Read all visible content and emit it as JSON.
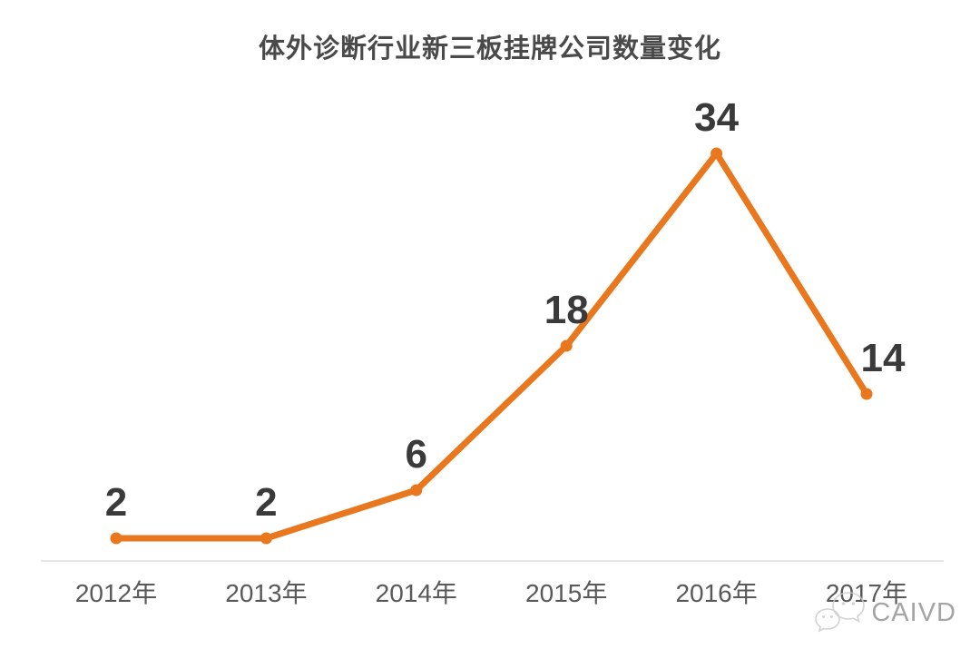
{
  "chart_data": {
    "type": "line",
    "title": "体外诊断行业新三板挂牌公司数量变化",
    "categories": [
      "2012年",
      "2013年",
      "2014年",
      "2015年",
      "2016年",
      "2017年"
    ],
    "values": [
      2,
      2,
      6,
      18,
      34,
      14
    ],
    "xlabel": "",
    "ylabel": "",
    "ylim": [
      0,
      45
    ],
    "grid": false,
    "legend": "none",
    "data_labels_shown": true,
    "colors": {
      "line": "#e8771e",
      "marker": "#e8771e",
      "data_label": "#3a3a3a",
      "axis_line": "#e6e6e6",
      "tick_label": "#595959",
      "title": "#4a4a4a",
      "watermark": "#a4a4a4"
    }
  },
  "watermark": {
    "icon": "wechat-icon",
    "text": "CAIVD"
  }
}
